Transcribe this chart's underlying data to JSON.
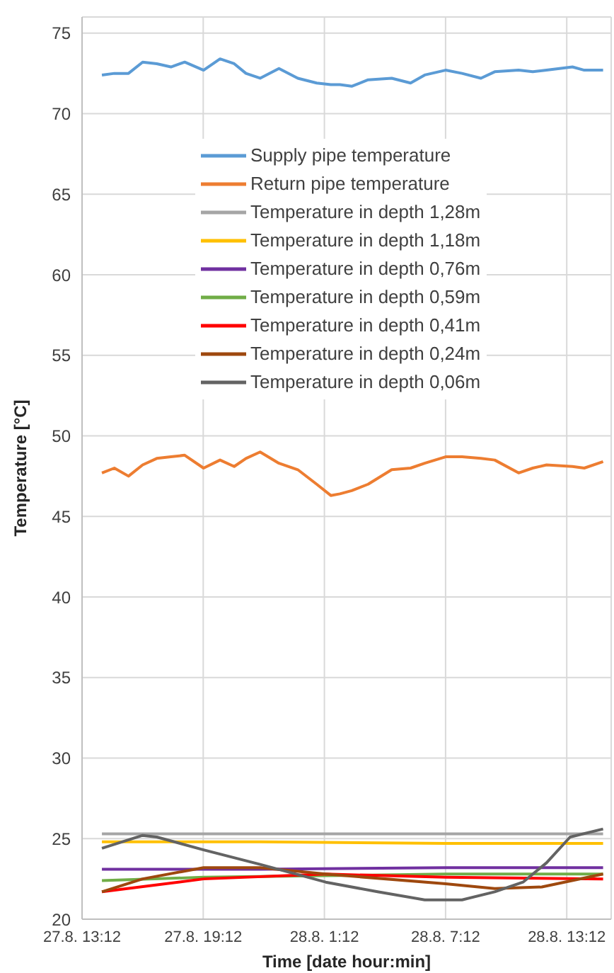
{
  "chart_data": {
    "type": "line",
    "xlabel": "Time [date hour:min]",
    "ylabel": "Temperature [°C]",
    "x": [
      "--08-27T14:11",
      "--08-27T14:48",
      "--08-27T15:30",
      "--08-27T16:12",
      "--08-27T16:54",
      "--08-27T17:36",
      "--08-27T18:17",
      "--08-27T19:13",
      "--08-27T20:02",
      "--08-27T20:44",
      "--08-27T21:19",
      "--08-27T22:01",
      "--08-27T22:57",
      "--08-27T23:53",
      "--08-28T00:49",
      "--08-28T01:31",
      "--08-28T01:58",
      "--08-28T02:33",
      "--08-28T03:22",
      "--08-28T04:32",
      "--08-28T05:28",
      "--08-28T06:10",
      "--08-28T07:12",
      "--08-28T08:01",
      "--08-28T08:57",
      "--08-28T09:38",
      "--08-28T10:49",
      "--08-28T11:31",
      "--08-28T12:12",
      "--08-28T13:29",
      "--08-28T14:04",
      "--08-28T15:00"
    ],
    "xlim": [
      "--08-27T13:12",
      "--08-28T15:24"
    ],
    "xticks": [
      {
        "value": "--08-27T13:12",
        "label": "27.8. 13:12"
      },
      {
        "value": "--08-27T19:12",
        "label": "27.8. 19:12"
      },
      {
        "value": "--08-28T01:12",
        "label": "28.8. 1:12"
      },
      {
        "value": "--08-28T07:12",
        "label": "28.8. 7:12"
      },
      {
        "value": "--08-28T13:12",
        "label": "28.8. 13:12"
      }
    ],
    "ylim": [
      20,
      76
    ],
    "yticks": [
      20,
      25,
      30,
      35,
      40,
      45,
      50,
      55,
      60,
      65,
      70,
      75
    ],
    "grid": true,
    "legend": "top",
    "marker": "none",
    "line_style": "solid",
    "series": [
      {
        "name": "Supply pipe temperature",
        "color": "#5b9bd5",
        "values": [
          72.4,
          72.5,
          72.5,
          73.2,
          73.1,
          72.9,
          73.2,
          72.7,
          73.4,
          73.1,
          72.5,
          72.2,
          72.8,
          72.2,
          71.9,
          71.8,
          71.8,
          71.7,
          72.1,
          72.2,
          71.9,
          72.4,
          72.7,
          72.5,
          72.2,
          72.6,
          72.7,
          72.6,
          72.7,
          72.9,
          72.7,
          72.7
        ]
      },
      {
        "name": "Return pipe temperature",
        "color": "#ed7d31",
        "values": [
          47.7,
          48.0,
          47.5,
          48.2,
          48.6,
          48.7,
          48.8,
          48.0,
          48.5,
          48.1,
          48.6,
          49.0,
          48.3,
          47.9,
          47.0,
          46.3,
          46.4,
          46.6,
          47.0,
          47.9,
          48.0,
          48.3,
          48.7,
          48.7,
          48.6,
          48.5,
          47.7,
          48.0,
          48.2,
          48.1,
          48.0,
          48.4
        ]
      },
      {
        "name": "Temperature in depth 1,28m",
        "color": "#a5a5a5",
        "x": [
          "--08-27T14:11",
          "--08-27T22:01",
          "--08-28T07:12",
          "--08-28T15:00"
        ],
        "values": [
          25.3,
          25.3,
          25.3,
          25.3
        ]
      },
      {
        "name": "Temperature in depth 1,18m",
        "color": "#ffc000",
        "x": [
          "--08-27T14:11",
          "--08-27T22:01",
          "--08-28T07:12",
          "--08-28T15:00"
        ],
        "values": [
          24.8,
          24.8,
          24.7,
          24.7
        ]
      },
      {
        "name": "Temperature in depth 0,76m",
        "color": "#7030a0",
        "x": [
          "--08-27T14:11",
          "--08-27T22:01",
          "--08-28T07:12",
          "--08-28T15:00"
        ],
        "values": [
          23.1,
          23.1,
          23.2,
          23.2
        ]
      },
      {
        "name": "Temperature in depth 0,59m",
        "color": "#70ad47",
        "x": [
          "--08-27T14:11",
          "--08-27T19:13",
          "--08-28T01:16",
          "--08-28T07:12",
          "--08-28T15:00"
        ],
        "values": [
          22.4,
          22.6,
          22.7,
          22.8,
          22.8
        ]
      },
      {
        "name": "Temperature in depth 0,41m",
        "color": "#ff0000",
        "x": [
          "--08-27T14:11",
          "--08-27T19:13",
          "--08-28T01:16",
          "--08-28T07:12",
          "--08-28T15:00"
        ],
        "values": [
          21.7,
          22.5,
          22.8,
          22.6,
          22.5
        ]
      },
      {
        "name": "Temperature in depth 0,24m",
        "color": "#9e480e",
        "x": [
          "--08-27T14:11",
          "--08-27T16:12",
          "--08-27T19:13",
          "--08-27T22:01",
          "--08-28T01:16",
          "--08-28T07:12",
          "--08-28T09:38",
          "--08-28T11:58",
          "--08-28T15:00"
        ],
        "values": [
          21.7,
          22.5,
          23.2,
          23.2,
          22.8,
          22.2,
          21.9,
          22.0,
          22.8
        ]
      },
      {
        "name": "Temperature in depth 0,06m",
        "color": "#636363",
        "x": [
          "--08-27T14:11",
          "--08-27T16:12",
          "--08-27T16:54",
          "--08-27T19:13",
          "--08-27T22:01",
          "--08-28T01:16",
          "--08-28T03:50",
          "--08-28T06:10",
          "--08-28T08:01",
          "--08-28T09:38",
          "--08-28T11:02",
          "--08-28T12:12",
          "--08-28T13:22",
          "--08-28T15:00"
        ],
        "values": [
          24.4,
          25.2,
          25.1,
          24.3,
          23.4,
          22.3,
          21.7,
          21.2,
          21.2,
          21.7,
          22.3,
          23.5,
          25.1,
          25.6
        ]
      }
    ]
  }
}
